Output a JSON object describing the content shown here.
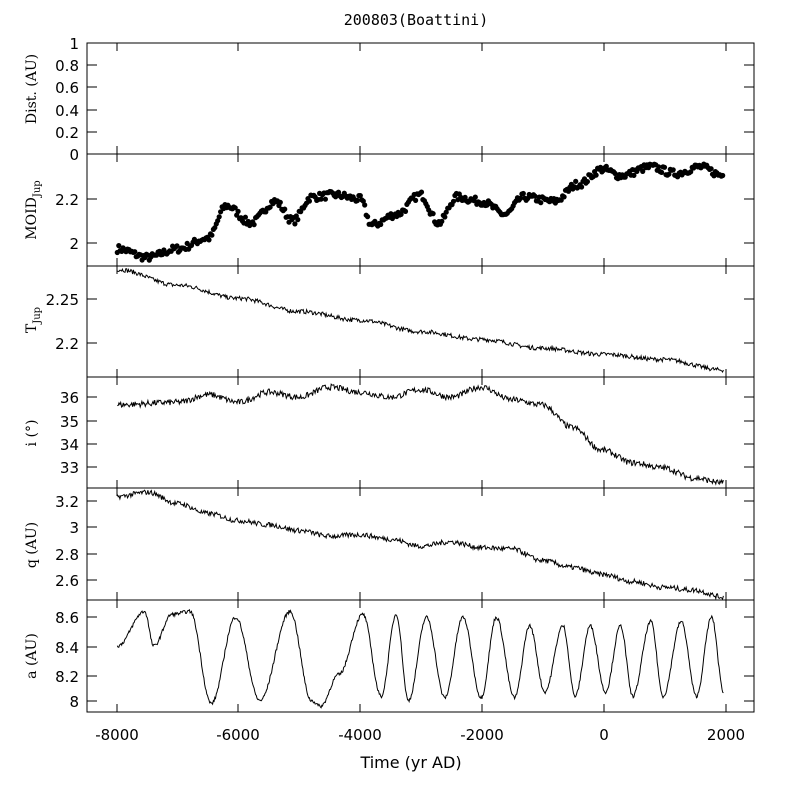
{
  "title": "200803(Boattini)",
  "xlabel": "Time (yr AD)",
  "xticks": [
    "-8000",
    "-6000",
    "-4000",
    "-2000",
    "0",
    "2000"
  ],
  "colors": {
    "line": "#000000",
    "background": "#ffffff"
  },
  "chart_data": [
    {
      "type": "line",
      "panel": "dist",
      "ylabel": "Dist. (AU)",
      "ylim": [
        0,
        1
      ],
      "yticks": [
        "1",
        "0.8",
        "0.6",
        "0.4",
        "0.2",
        "0"
      ],
      "xlim": [
        -8500,
        2500
      ],
      "series": []
    },
    {
      "type": "scatter",
      "panel": "moid",
      "ylabel_main": "MOID",
      "ylabel_sub": "Jup",
      "ylim": [
        1.92,
        2.44
      ],
      "yticks": [
        "2.2",
        "2"
      ],
      "xlim": [
        -8500,
        2500
      ],
      "x": [
        -8000,
        -7500,
        -7000,
        -6500,
        -6200,
        -5800,
        -5400,
        -5100,
        -4800,
        -4400,
        -4000,
        -3800,
        -3400,
        -3000,
        -2700,
        -2400,
        -2000,
        -1600,
        -1300,
        -800,
        -400,
        0,
        300,
        800,
        1200,
        1600,
        2000
      ],
      "y": [
        2.0,
        1.96,
        2.0,
        2.05,
        2.2,
        2.12,
        2.22,
        2.13,
        2.24,
        2.25,
        2.23,
        2.11,
        2.16,
        2.25,
        2.12,
        2.24,
        2.22,
        2.16,
        2.24,
        2.22,
        2.3,
        2.37,
        2.34,
        2.38,
        2.35,
        2.38,
        2.34
      ]
    },
    {
      "type": "line",
      "panel": "tjup",
      "ylabel_main": "T",
      "ylabel_sub": "Jup",
      "ylim": [
        2.16,
        2.287
      ],
      "yticks": [
        "2.25",
        "2.2"
      ],
      "xlim": [
        -8500,
        2500
      ],
      "x": [
        -8000,
        -7000,
        -6000,
        -5000,
        -4000,
        -3000,
        -2000,
        -1000,
        0,
        1000,
        2000
      ],
      "y": [
        2.283,
        2.265,
        2.25,
        2.235,
        2.225,
        2.212,
        2.203,
        2.193,
        2.186,
        2.18,
        2.168
      ]
    },
    {
      "type": "line",
      "panel": "incl",
      "ylabel": "i (°)",
      "ylim": [
        32.2,
        36.6
      ],
      "yticks": [
        "36",
        "35",
        "34",
        "33"
      ],
      "xlim": [
        -8500,
        2500
      ],
      "x": [
        -8000,
        -7000,
        -6500,
        -6000,
        -5500,
        -5000,
        -4500,
        -4000,
        -3500,
        -3000,
        -2500,
        -2000,
        -1500,
        -1000,
        -500,
        0,
        500,
        1000,
        1500,
        2000
      ],
      "y": [
        35.5,
        35.6,
        35.9,
        35.6,
        36.0,
        35.8,
        36.2,
        36.0,
        35.8,
        36.1,
        35.8,
        36.2,
        35.7,
        35.5,
        34.6,
        33.7,
        33.2,
        33.0,
        32.6,
        32.4
      ]
    },
    {
      "type": "line",
      "panel": "q",
      "ylabel": "q (AU)",
      "ylim": [
        2.49,
        3.28
      ],
      "yticks": [
        "3.2",
        "3",
        "2.8",
        "2.6"
      ],
      "xlim": [
        -8500,
        2500
      ],
      "x": [
        -8000,
        -7500,
        -7000,
        -6500,
        -6000,
        -5500,
        -5000,
        -4500,
        -4000,
        -3500,
        -3000,
        -2500,
        -2000,
        -1500,
        -1000,
        -500,
        0,
        500,
        1000,
        1500,
        2000
      ],
      "y": [
        3.22,
        3.25,
        3.17,
        3.1,
        3.05,
        3.02,
        2.98,
        2.94,
        2.95,
        2.92,
        2.87,
        2.9,
        2.86,
        2.85,
        2.77,
        2.72,
        2.67,
        2.62,
        2.58,
        2.56,
        2.51
      ]
    },
    {
      "type": "line",
      "panel": "a",
      "ylabel": "a (AU)",
      "ylim": [
        7.92,
        8.7
      ],
      "yticks": [
        "8.6",
        "8.4",
        "8.2",
        "8"
      ],
      "xlim": [
        -8500,
        2500
      ],
      "x": [
        -8000,
        -7550,
        -7400,
        -7100,
        -6800,
        -6450,
        -6050,
        -5650,
        -5150,
        -4800,
        -4650,
        -4350,
        -3950,
        -3650,
        -3400,
        -3200,
        -2900,
        -2600,
        -2300,
        -2000,
        -1750,
        -1450,
        -1200,
        -950,
        -650,
        -450,
        -200,
        50,
        300,
        500,
        800,
        1000,
        1300,
        1550,
        1800,
        2000
      ],
      "y": [
        8.38,
        8.62,
        8.38,
        8.6,
        8.62,
        7.98,
        8.58,
        8.0,
        8.62,
        8.0,
        7.96,
        8.18,
        8.6,
        8.03,
        8.6,
        8.0,
        8.58,
        8.02,
        8.58,
        8.02,
        8.58,
        8.02,
        8.52,
        8.06,
        8.52,
        8.03,
        8.52,
        8.06,
        8.52,
        8.03,
        8.55,
        8.03,
        8.55,
        8.03,
        8.58,
        8.06
      ]
    }
  ]
}
